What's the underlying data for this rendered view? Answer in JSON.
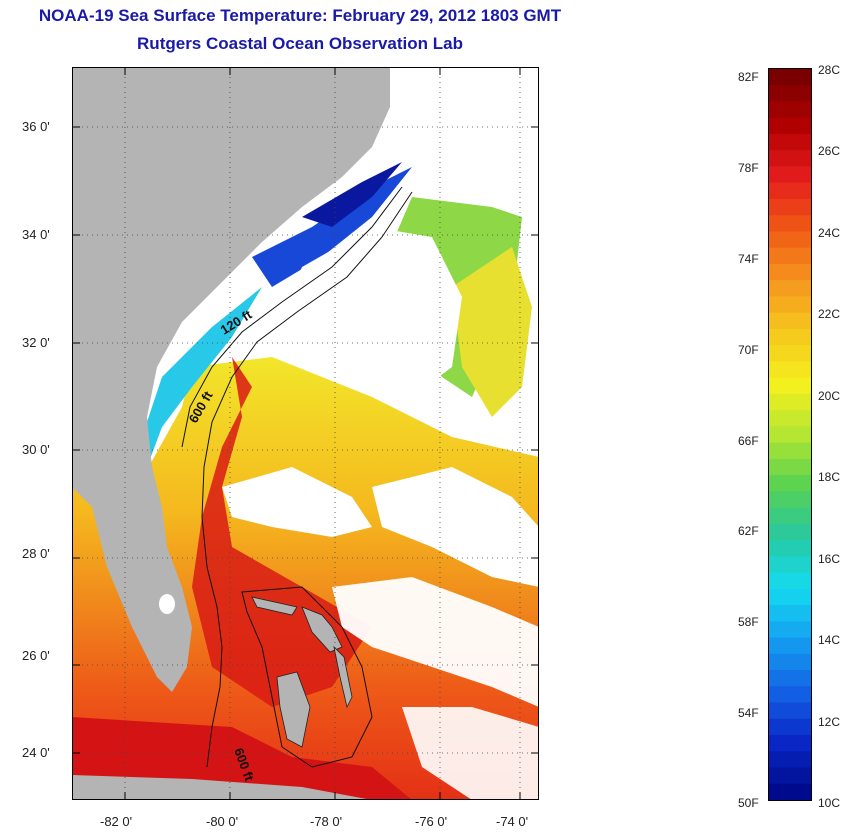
{
  "title": "NOAA-19 Sea Surface Temperature:  February 29, 2012 1803 GMT",
  "subtitle": "Rutgers Coastal Ocean Observation Lab",
  "map": {
    "y_axis_labels": [
      "36 0'",
      "34 0'",
      "32 0'",
      "30 0'",
      "28 0'",
      "26 0'",
      "24 0'"
    ],
    "x_axis_labels": [
      "-82 0'",
      "-80 0'",
      "-78 0'",
      "-76 0'",
      "-74 0'"
    ],
    "contour_labels": [
      "120 ft",
      "600 ft",
      "600 ft"
    ],
    "colors": {
      "land": "#b4b4b4",
      "cloud": "#ffffff",
      "warm_water": "#e8401a",
      "hot_water": "#d41414",
      "orange_water": "#f07a1a",
      "yellow_water": "#f0d81c",
      "green_water": "#8ed848",
      "cyan_water": "#28c8e8",
      "blue_water": "#1848d8",
      "dark_blue_water": "#0a18a0"
    }
  },
  "colorbar": {
    "fahrenheit_labels": [
      "82F",
      "78F",
      "74F",
      "70F",
      "66F",
      "62F",
      "58F",
      "54F",
      "50F"
    ],
    "celsius_labels": [
      "28C",
      "26C",
      "24C",
      "22C",
      "20C",
      "18C",
      "16C",
      "14C",
      "12C",
      "10C"
    ],
    "range_c": [
      10,
      28
    ],
    "colors_top_to_bottom": [
      "#7a0000",
      "#b40000",
      "#e61e1e",
      "#f05a14",
      "#f5961e",
      "#f5c81e",
      "#f5f01e",
      "#b4e632",
      "#5ad250",
      "#28c8a0",
      "#14dcf0",
      "#14a0f0",
      "#1464e6",
      "#0a28c8",
      "#000a8c"
    ]
  }
}
